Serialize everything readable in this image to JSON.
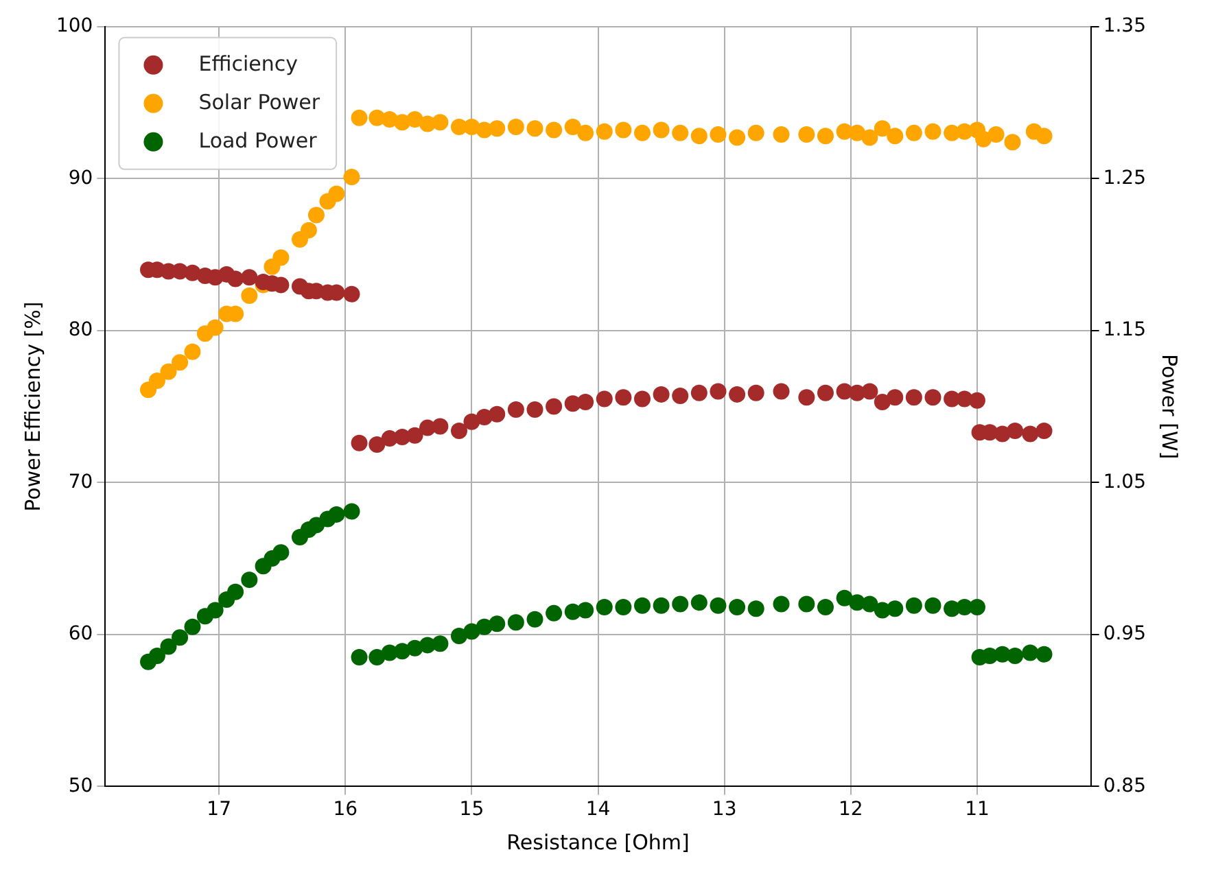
{
  "chart_data": {
    "type": "scatter",
    "xlabel": "Resistance [Ohm]",
    "ylabel": "Power Efficiency [%]",
    "y2label": "Power [W]",
    "xlim": [
      17.9,
      10.1
    ],
    "xticks": [
      17,
      16,
      15,
      14,
      13,
      12,
      11
    ],
    "ylim": [
      50,
      100
    ],
    "yticks": [
      50,
      60,
      70,
      80,
      90,
      100
    ],
    "y2lim": [
      0.85,
      1.35
    ],
    "y2ticks": [
      0.85,
      0.95,
      1.05,
      1.15,
      1.25,
      1.35
    ],
    "grid": true,
    "legend": "top left",
    "marker": "circle",
    "series": [
      {
        "name": "Efficiency",
        "color": "#a52a2a",
        "x": [
          17.56,
          17.49,
          17.4,
          17.31,
          17.21,
          17.11,
          17.03,
          16.94,
          16.87,
          16.76,
          16.65,
          16.58,
          16.51,
          16.36,
          16.29,
          16.23,
          16.14,
          16.07,
          15.95,
          15.89,
          15.75,
          15.65,
          15.55,
          15.45,
          15.35,
          15.25,
          15.1,
          15.0,
          14.9,
          14.8,
          14.65,
          14.5,
          14.35,
          14.2,
          14.1,
          13.95,
          13.8,
          13.65,
          13.5,
          13.35,
          13.2,
          13.05,
          12.9,
          12.75,
          12.55,
          12.35,
          12.2,
          12.05,
          11.95,
          11.85,
          11.75,
          11.65,
          11.5,
          11.35,
          11.2,
          11.1,
          11.0,
          10.98,
          10.9,
          10.8,
          10.7,
          10.58,
          10.47
        ],
        "values": [
          84.0,
          84.0,
          83.9,
          83.9,
          83.8,
          83.6,
          83.5,
          83.7,
          83.4,
          83.5,
          83.2,
          83.1,
          83.0,
          82.9,
          82.6,
          82.6,
          82.5,
          82.5,
          82.4,
          72.6,
          72.5,
          72.9,
          73.0,
          73.1,
          73.6,
          73.7,
          73.4,
          74.0,
          74.3,
          74.5,
          74.8,
          74.8,
          75.0,
          75.2,
          75.3,
          75.5,
          75.6,
          75.5,
          75.8,
          75.7,
          75.9,
          76.0,
          75.8,
          75.9,
          76.0,
          75.6,
          75.9,
          76.0,
          75.9,
          76.0,
          75.3,
          75.6,
          75.6,
          75.6,
          75.5,
          75.5,
          75.4,
          73.3,
          73.3,
          73.2,
          73.4,
          73.2,
          73.4
        ]
      },
      {
        "name": "Solar Power",
        "color": "#ffa500",
        "axis": "y2",
        "x": [
          17.56,
          17.49,
          17.4,
          17.31,
          17.21,
          17.11,
          17.03,
          16.94,
          16.87,
          16.76,
          16.65,
          16.58,
          16.51,
          16.36,
          16.29,
          16.23,
          16.14,
          16.07,
          15.95,
          15.89,
          15.75,
          15.65,
          15.55,
          15.45,
          15.35,
          15.25,
          15.1,
          15.0,
          14.9,
          14.8,
          14.65,
          14.5,
          14.35,
          14.2,
          14.1,
          13.95,
          13.8,
          13.65,
          13.5,
          13.35,
          13.2,
          13.05,
          12.9,
          12.75,
          12.55,
          12.35,
          12.2,
          12.05,
          11.95,
          11.85,
          11.75,
          11.65,
          11.5,
          11.35,
          11.2,
          11.1,
          11.0,
          10.95,
          10.85,
          10.72,
          10.55,
          10.47
        ],
        "values": [
          1.111,
          1.117,
          1.123,
          1.129,
          1.136,
          1.148,
          1.152,
          1.161,
          1.161,
          1.173,
          1.18,
          1.192,
          1.198,
          1.21,
          1.216,
          1.226,
          1.235,
          1.24,
          1.251,
          1.29,
          1.29,
          1.289,
          1.287,
          1.289,
          1.286,
          1.287,
          1.284,
          1.284,
          1.282,
          1.283,
          1.284,
          1.283,
          1.282,
          1.284,
          1.28,
          1.281,
          1.282,
          1.28,
          1.282,
          1.28,
          1.278,
          1.279,
          1.277,
          1.28,
          1.279,
          1.279,
          1.278,
          1.281,
          1.28,
          1.277,
          1.283,
          1.278,
          1.28,
          1.281,
          1.28,
          1.281,
          1.282,
          1.276,
          1.279,
          1.274,
          1.281,
          1.278
        ]
      },
      {
        "name": "Load Power",
        "color": "#006400",
        "axis": "y2",
        "x": [
          17.56,
          17.49,
          17.4,
          17.31,
          17.21,
          17.11,
          17.03,
          16.94,
          16.87,
          16.76,
          16.65,
          16.58,
          16.51,
          16.36,
          16.29,
          16.23,
          16.14,
          16.07,
          15.95,
          15.89,
          15.75,
          15.65,
          15.55,
          15.45,
          15.35,
          15.25,
          15.1,
          15.0,
          14.9,
          14.8,
          14.65,
          14.5,
          14.35,
          14.2,
          14.1,
          13.95,
          13.8,
          13.65,
          13.5,
          13.35,
          13.2,
          13.05,
          12.9,
          12.75,
          12.55,
          12.35,
          12.2,
          12.05,
          11.95,
          11.85,
          11.75,
          11.65,
          11.5,
          11.35,
          11.2,
          11.1,
          11.0,
          10.98,
          10.9,
          10.8,
          10.7,
          10.58,
          10.47
        ],
        "values": [
          0.932,
          0.936,
          0.942,
          0.948,
          0.955,
          0.962,
          0.966,
          0.973,
          0.978,
          0.986,
          0.995,
          1.0,
          1.004,
          1.014,
          1.019,
          1.022,
          1.026,
          1.029,
          1.031,
          0.935,
          0.935,
          0.938,
          0.939,
          0.941,
          0.943,
          0.944,
          0.949,
          0.952,
          0.955,
          0.957,
          0.958,
          0.96,
          0.964,
          0.965,
          0.966,
          0.968,
          0.968,
          0.969,
          0.969,
          0.97,
          0.971,
          0.969,
          0.968,
          0.967,
          0.97,
          0.97,
          0.968,
          0.974,
          0.971,
          0.97,
          0.966,
          0.967,
          0.969,
          0.969,
          0.967,
          0.968,
          0.968,
          0.935,
          0.936,
          0.937,
          0.936,
          0.938,
          0.937
        ]
      }
    ]
  }
}
